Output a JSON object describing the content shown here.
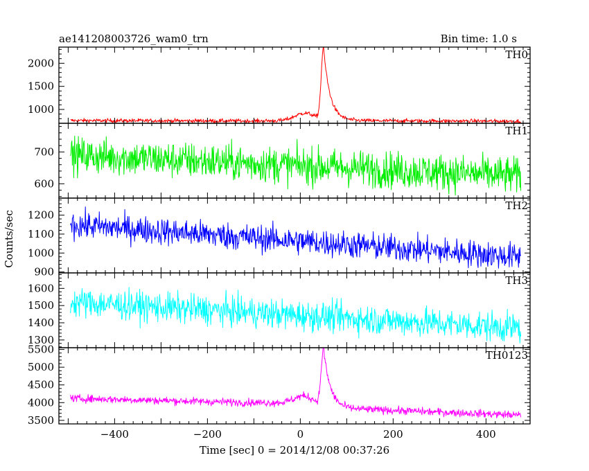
{
  "chart_data": {
    "type": "line",
    "title": "ae141208003726_wam0_trn",
    "subtitle": "Bin time: 1.0 s",
    "xlabel": "Time [sec] 0 = 2014/12/08 00:37:26",
    "ylabel": "Counts/sec",
    "xlim": [
      -520,
      495
    ],
    "x_ticks": [
      -400,
      -200,
      0,
      200,
      400
    ],
    "x_tick_labels": [
      "−400",
      "−200",
      "0",
      "200",
      "400"
    ],
    "x_range": [
      -495,
      475
    ],
    "grid": false,
    "legend": "none",
    "panels": [
      {
        "name": "TH0",
        "color": "#ff0000",
        "ylim": [
          700,
          2350
        ],
        "y_ticks": [
          1000,
          1500,
          2000
        ],
        "y_tick_labels": [
          "1000",
          "1500",
          "2000"
        ],
        "baseline": [
          [
            -495,
            760
          ],
          [
            -100,
            750
          ],
          [
            0,
            760
          ],
          [
            470,
            745
          ]
        ],
        "noise": 30,
        "features": [
          {
            "kind": "bump",
            "center": 10,
            "width": 30,
            "amp": 160
          },
          {
            "kind": "peak",
            "peak_x": 50,
            "peak_y": 2320,
            "rise": 7,
            "decay": 14
          }
        ]
      },
      {
        "name": "TH1",
        "color": "#00ee00",
        "ylim": [
          555,
          790
        ],
        "y_ticks": [
          600,
          700
        ],
        "y_tick_labels": [
          "600",
          "700"
        ],
        "baseline": [
          [
            -495,
            690
          ],
          [
            470,
            625
          ]
        ],
        "noise": 40,
        "features": []
      },
      {
        "name": "TH2",
        "color": "#0000ff",
        "ylim": [
          895,
          1290
        ],
        "y_ticks": [
          900,
          1000,
          1100,
          1200
        ],
        "y_tick_labels": [
          "900",
          "1000",
          "1100",
          "1200"
        ],
        "baseline": [
          [
            -495,
            1150
          ],
          [
            470,
            980
          ]
        ],
        "noise": 50,
        "features": []
      },
      {
        "name": "TH3",
        "color": "#00ffff",
        "ylim": [
          1255,
          1690
        ],
        "y_ticks": [
          1300,
          1400,
          1500,
          1600
        ],
        "y_tick_labels": [
          "1300",
          "1400",
          "1500",
          "1600"
        ],
        "baseline": [
          [
            -495,
            1520
          ],
          [
            470,
            1370
          ]
        ],
        "noise": 60,
        "features": []
      },
      {
        "name": "TH0123",
        "color": "#ff00ff",
        "ylim": [
          3400,
          5550
        ],
        "y_ticks": [
          3500,
          4000,
          4500,
          5000,
          5500
        ],
        "y_tick_labels": [
          "3500",
          "4000",
          "4500",
          "5000",
          "5500"
        ],
        "baseline": [
          [
            -495,
            4120
          ],
          [
            -100,
            4000
          ],
          [
            0,
            4000
          ],
          [
            100,
            3830
          ],
          [
            470,
            3650
          ]
        ],
        "noise": 75,
        "features": [
          {
            "kind": "bump",
            "center": 10,
            "width": 30,
            "amp": 200
          },
          {
            "kind": "peak",
            "peak_x": 50,
            "peak_y": 5500,
            "rise": 7,
            "decay": 14
          }
        ]
      }
    ]
  }
}
